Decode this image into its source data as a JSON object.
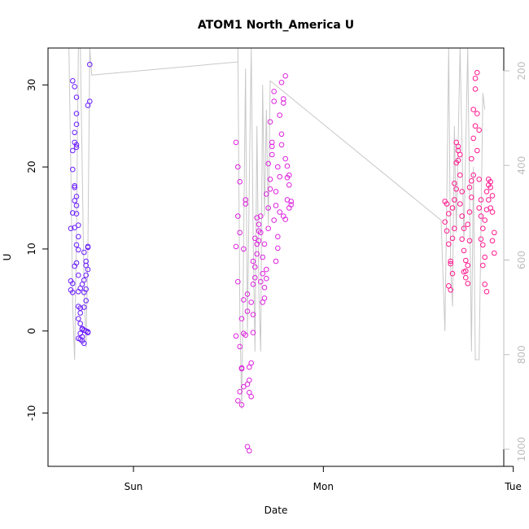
{
  "chart_data": {
    "type": "scatter",
    "title": "ATOM1 North_America U",
    "xlabel": "Date",
    "ylabel": "U",
    "x_unit": "days",
    "xlim": [
      -0.45,
      1.95
    ],
    "ylim": [
      -16.5,
      34.5
    ],
    "x_ticks": [
      {
        "value": 0,
        "label": "Sun"
      },
      {
        "value": 1,
        "label": "Mon"
      },
      {
        "value": 2,
        "label": "Tue"
      }
    ],
    "y_ticks": [
      -10,
      0,
      10,
      20,
      30
    ],
    "y2_axis": {
      "reversed": true,
      "ticks": [
        200,
        400,
        600,
        800,
        1000
      ],
      "color": "#bdbdbd"
    },
    "grid": false,
    "legend": "none",
    "colors": {
      "group1": "#6a1bff",
      "group2": "#dd22dd",
      "group3": "#ff1a90",
      "pressure_line": "#c8c8c8"
    },
    "series": [
      {
        "x": [
          -0.33,
          -0.32,
          -0.33,
          -0.32,
          -0.33,
          -0.32,
          -0.31,
          -0.3,
          -0.32,
          -0.31,
          -0.3,
          -0.3,
          -0.31,
          -0.32,
          -0.3,
          -0.3,
          -0.31,
          -0.32,
          -0.31,
          -0.3,
          -0.31,
          -0.3,
          -0.3,
          -0.31,
          -0.29,
          -0.29,
          -0.3,
          -0.29,
          -0.3,
          -0.31,
          -0.29,
          -0.28,
          -0.29,
          -0.29,
          -0.28,
          -0.28,
          -0.29,
          -0.28,
          -0.27,
          -0.28,
          -0.29,
          -0.28,
          -0.27,
          -0.27,
          -0.26,
          -0.26,
          -0.27,
          -0.26,
          -0.25,
          -0.26,
          -0.25,
          -0.27,
          -0.26,
          -0.25,
          -0.24,
          -0.25,
          -0.25,
          -0.26,
          -0.24,
          -0.24,
          -0.24,
          -0.25,
          -0.24,
          -0.23,
          -0.23,
          -0.24
        ],
        "y": [
          5.0,
          5.8,
          6.1,
          4.7,
          12.5,
          14.4,
          17.5,
          28.5,
          30.5,
          29.8,
          26.5,
          25.2,
          23.0,
          22.0,
          22.7,
          22.4,
          24.2,
          19.7,
          17.7,
          16.4,
          15.9,
          15.3,
          14.3,
          12.6,
          12.9,
          11.5,
          10.5,
          9.9,
          8.3,
          7.9,
          6.8,
          5.2,
          4.8,
          3.0,
          2.8,
          2.2,
          1.5,
          0.9,
          0.2,
          -0.3,
          -0.9,
          -1.0,
          -1.2,
          -0.7,
          -1.5,
          0.1,
          0.3,
          2.9,
          3.7,
          4.7,
          5.1,
          5.7,
          6.2,
          6.8,
          7.5,
          8.0,
          8.5,
          9.6,
          10.2,
          10.3,
          -0.1,
          0.0,
          -0.2,
          32.5,
          28.0,
          27.5
        ]
      },
      {
        "x": [
          0.54,
          0.55,
          0.56,
          0.55,
          0.54,
          0.56,
          0.55,
          0.54,
          0.57,
          0.56,
          0.55,
          0.57,
          0.58,
          0.57,
          0.56,
          0.58,
          0.57,
          0.58,
          0.59,
          0.59,
          0.58,
          0.6,
          0.6,
          0.59,
          0.6,
          0.61,
          0.61,
          0.6,
          0.61,
          0.62,
          0.62,
          0.61,
          0.63,
          0.63,
          0.62,
          0.63,
          0.64,
          0.64,
          0.63,
          0.65,
          0.65,
          0.64,
          0.66,
          0.66,
          0.65,
          0.67,
          0.67,
          0.66,
          0.68,
          0.68,
          0.67,
          0.69,
          0.69,
          0.68,
          0.7,
          0.7,
          0.69,
          0.71,
          0.71,
          0.7,
          0.72,
          0.72,
          0.71,
          0.73,
          0.73,
          0.72,
          0.74,
          0.74,
          0.73,
          0.75,
          0.75,
          0.74,
          0.76,
          0.76,
          0.75,
          0.77,
          0.77,
          0.76,
          0.78,
          0.78,
          0.77,
          0.79,
          0.79,
          0.78,
          0.8,
          0.8,
          0.79,
          0.81,
          0.81,
          0.8,
          0.82,
          0.82,
          0.81,
          0.83,
          0.83,
          0.82
        ],
        "y": [
          23.0,
          20.0,
          18.2,
          14.0,
          10.3,
          12.0,
          6.0,
          -0.6,
          -4.6,
          -7.4,
          -8.5,
          -9.0,
          -6.8,
          -4.5,
          -1.9,
          3.8,
          1.5,
          -0.3,
          16.0,
          15.5,
          10.0,
          4.5,
          2.4,
          -0.5,
          -14.1,
          -14.6,
          -6.0,
          -6.5,
          -7.5,
          -8.0,
          -3.9,
          -4.4,
          -0.2,
          2.0,
          3.5,
          5.7,
          6.5,
          7.8,
          8.5,
          9.4,
          10.6,
          11.3,
          12.2,
          13.0,
          13.8,
          14.0,
          12.0,
          11.0,
          9.0,
          7.0,
          6.0,
          5.3,
          4.0,
          3.5,
          6.4,
          7.5,
          10.6,
          12.5,
          15.0,
          16.7,
          17.3,
          18.5,
          20.4,
          22.5,
          23.0,
          25.5,
          28.0,
          29.2,
          21.5,
          17.0,
          15.3,
          13.5,
          11.5,
          10.1,
          8.5,
          14.5,
          18.8,
          20.0,
          22.7,
          24.0,
          26.3,
          27.8,
          28.3,
          30.3,
          31.1,
          13.6,
          14.0,
          18.7,
          20.1,
          21.0,
          19.0,
          17.8,
          16.0,
          15.4,
          15.8,
          15.0
        ]
      },
      {
        "x": [
          1.64,
          1.65,
          1.66,
          1.64,
          1.65,
          1.66,
          1.67,
          1.66,
          1.67,
          1.68,
          1.67,
          1.68,
          1.69,
          1.68,
          1.69,
          1.7,
          1.69,
          1.7,
          1.71,
          1.7,
          1.71,
          1.72,
          1.71,
          1.72,
          1.73,
          1.72,
          1.73,
          1.74,
          1.73,
          1.74,
          1.75,
          1.74,
          1.75,
          1.76,
          1.75,
          1.76,
          1.77,
          1.76,
          1.77,
          1.78,
          1.77,
          1.78,
          1.79,
          1.78,
          1.79,
          1.8,
          1.79,
          1.8,
          1.81,
          1.8,
          1.81,
          1.82,
          1.81,
          1.82,
          1.83,
          1.82,
          1.83,
          1.84,
          1.83,
          1.84,
          1.85,
          1.84,
          1.85,
          1.86,
          1.85,
          1.86,
          1.87,
          1.86,
          1.87,
          1.88,
          1.87,
          1.88,
          1.89,
          1.88,
          1.89,
          1.9,
          1.89,
          1.9
        ],
        "y": [
          15.8,
          15.5,
          14.3,
          13.3,
          12.2,
          10.6,
          8.2,
          5.5,
          5.0,
          7.0,
          8.5,
          11.3,
          12.5,
          15.0,
          16.0,
          17.3,
          18.0,
          20.5,
          22.0,
          23.0,
          22.5,
          21.5,
          20.8,
          19.0,
          17.0,
          15.5,
          14.0,
          12.5,
          11.2,
          9.8,
          8.6,
          7.2,
          6.5,
          5.8,
          7.3,
          8.0,
          11.0,
          13.0,
          14.5,
          16.3,
          17.5,
          18.3,
          19.0,
          21.0,
          23.5,
          25.0,
          27.0,
          29.5,
          31.5,
          30.8,
          26.5,
          24.5,
          22.0,
          18.5,
          16.0,
          15.0,
          14.0,
          12.5,
          11.2,
          10.5,
          9.0,
          8.0,
          5.7,
          4.8,
          13.5,
          14.8,
          16.0,
          17.0,
          17.8,
          18.2,
          18.5,
          17.5,
          16.5,
          15.0,
          14.5,
          12.0,
          11.0,
          9.5
        ]
      }
    ]
  }
}
